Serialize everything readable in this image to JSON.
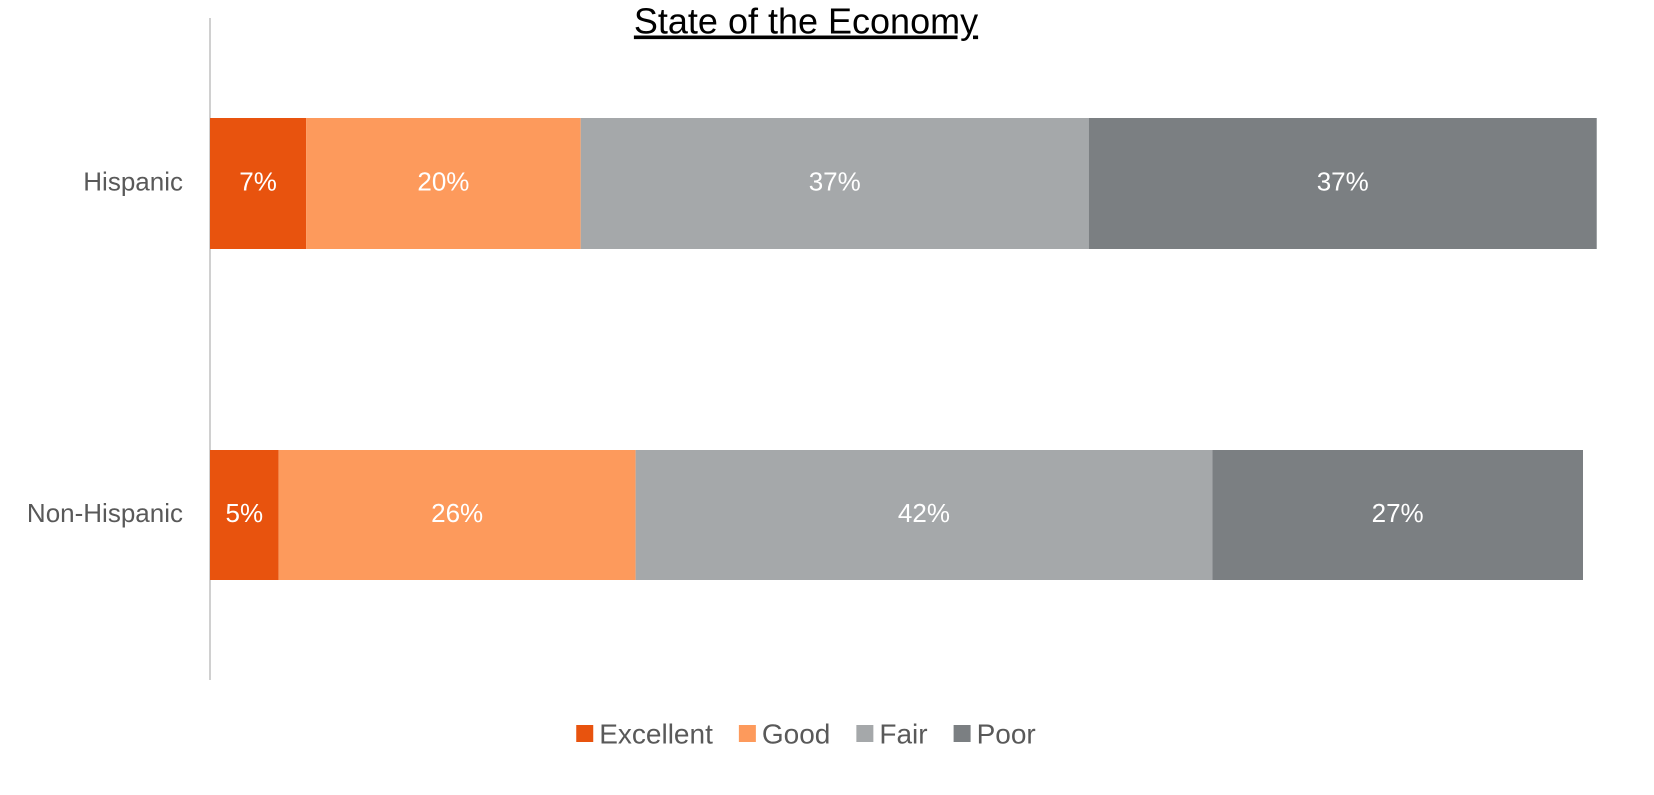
{
  "chart_data": {
    "type": "stacked_bar_horizontal",
    "title": "State of the Economy",
    "categories": [
      "Hispanic",
      "Non-Hispanic"
    ],
    "xlim": [
      0,
      100
    ],
    "series": [
      {
        "name": "Excellent",
        "color": "#e8530e",
        "values": [
          7,
          5
        ],
        "value_labels": [
          "7%",
          "5%"
        ]
      },
      {
        "name": "Good",
        "color": "#fd9a5c",
        "values": [
          20,
          26
        ],
        "value_labels": [
          "20%",
          "26%"
        ]
      },
      {
        "name": "Fair",
        "color": "#a5a8aa",
        "values": [
          37,
          42
        ],
        "value_labels": [
          "37%",
          "42%"
        ]
      },
      {
        "name": "Poor",
        "color": "#7b7f82",
        "values": [
          37,
          27
        ],
        "value_labels": [
          "37%",
          "27%"
        ]
      }
    ],
    "legend": "bottom"
  }
}
